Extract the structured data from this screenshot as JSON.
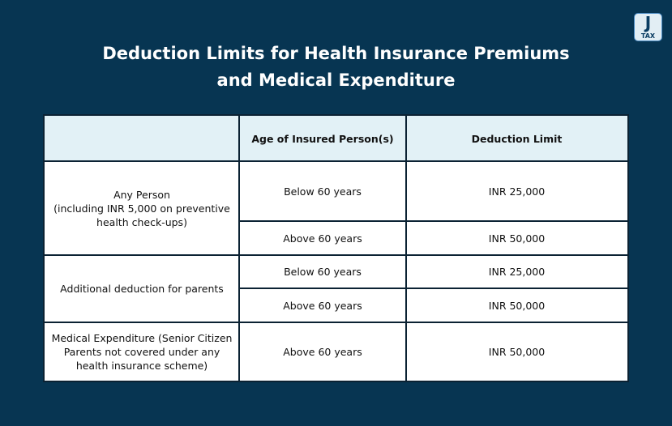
{
  "logo": {
    "letter": "J",
    "subtext": "TAX"
  },
  "title": {
    "line1": "Deduction Limits for Health Insurance Premiums",
    "line2": "and Medical Expenditure"
  },
  "table": {
    "headers": [
      "",
      "Age of Insured Person(s)",
      "Deduction Limit"
    ],
    "groups": [
      {
        "category": "Any Person\n(including INR 5,000 on preventive health check-ups)",
        "rows": [
          {
            "age": "Below 60 years",
            "limit": "INR 25,000"
          },
          {
            "age": "Above 60 years",
            "limit": "INR 50,000"
          }
        ]
      },
      {
        "category": "Additional deduction for parents",
        "rows": [
          {
            "age": "Below 60 years",
            "limit": "INR 25,000"
          },
          {
            "age": "Above 60 years",
            "limit": "INR 50,000"
          }
        ]
      },
      {
        "category": "Medical Expenditure (Senior Citizen Parents not covered under any health insurance scheme)",
        "rows": [
          {
            "age": "Above 60 years",
            "limit": "INR 50,000"
          }
        ]
      }
    ]
  }
}
